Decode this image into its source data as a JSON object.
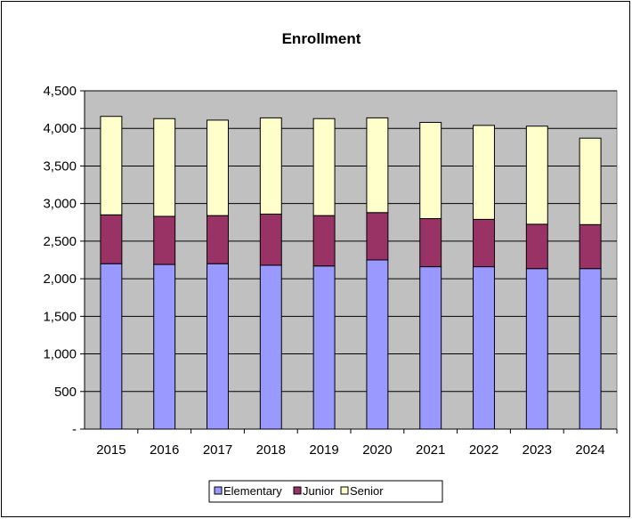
{
  "chart_data": {
    "type": "bar",
    "stacked": true,
    "title": "Enrollment",
    "xlabel": "",
    "ylabel": "",
    "categories": [
      "2015",
      "2016",
      "2017",
      "2018",
      "2019",
      "2020",
      "2021",
      "2022",
      "2023",
      "2024"
    ],
    "series": [
      {
        "name": "Elementary",
        "color": "#9999ff",
        "values": [
          2200,
          2190,
          2200,
          2180,
          2170,
          2250,
          2160,
          2160,
          2135,
          2135
        ]
      },
      {
        "name": "Junior",
        "color": "#993366",
        "values": [
          650,
          640,
          640,
          680,
          670,
          630,
          640,
          630,
          590,
          585
        ]
      },
      {
        "name": "Senior",
        "color": "#ffffcc",
        "values": [
          1310,
          1300,
          1270,
          1280,
          1290,
          1260,
          1280,
          1250,
          1305,
          1150
        ]
      }
    ],
    "ylim": [
      0,
      4500
    ],
    "yticks": [
      0,
      500,
      1000,
      1500,
      2000,
      2500,
      3000,
      3500,
      4000,
      4500
    ],
    "ytick_labels": [
      "-",
      "500",
      "1,000",
      "1,500",
      "2,000",
      "2,500",
      "3,000",
      "3,500",
      "4,000",
      "4,500"
    ],
    "grid": true,
    "plot_background": "#c0c0c0",
    "legend_position": "bottom"
  }
}
